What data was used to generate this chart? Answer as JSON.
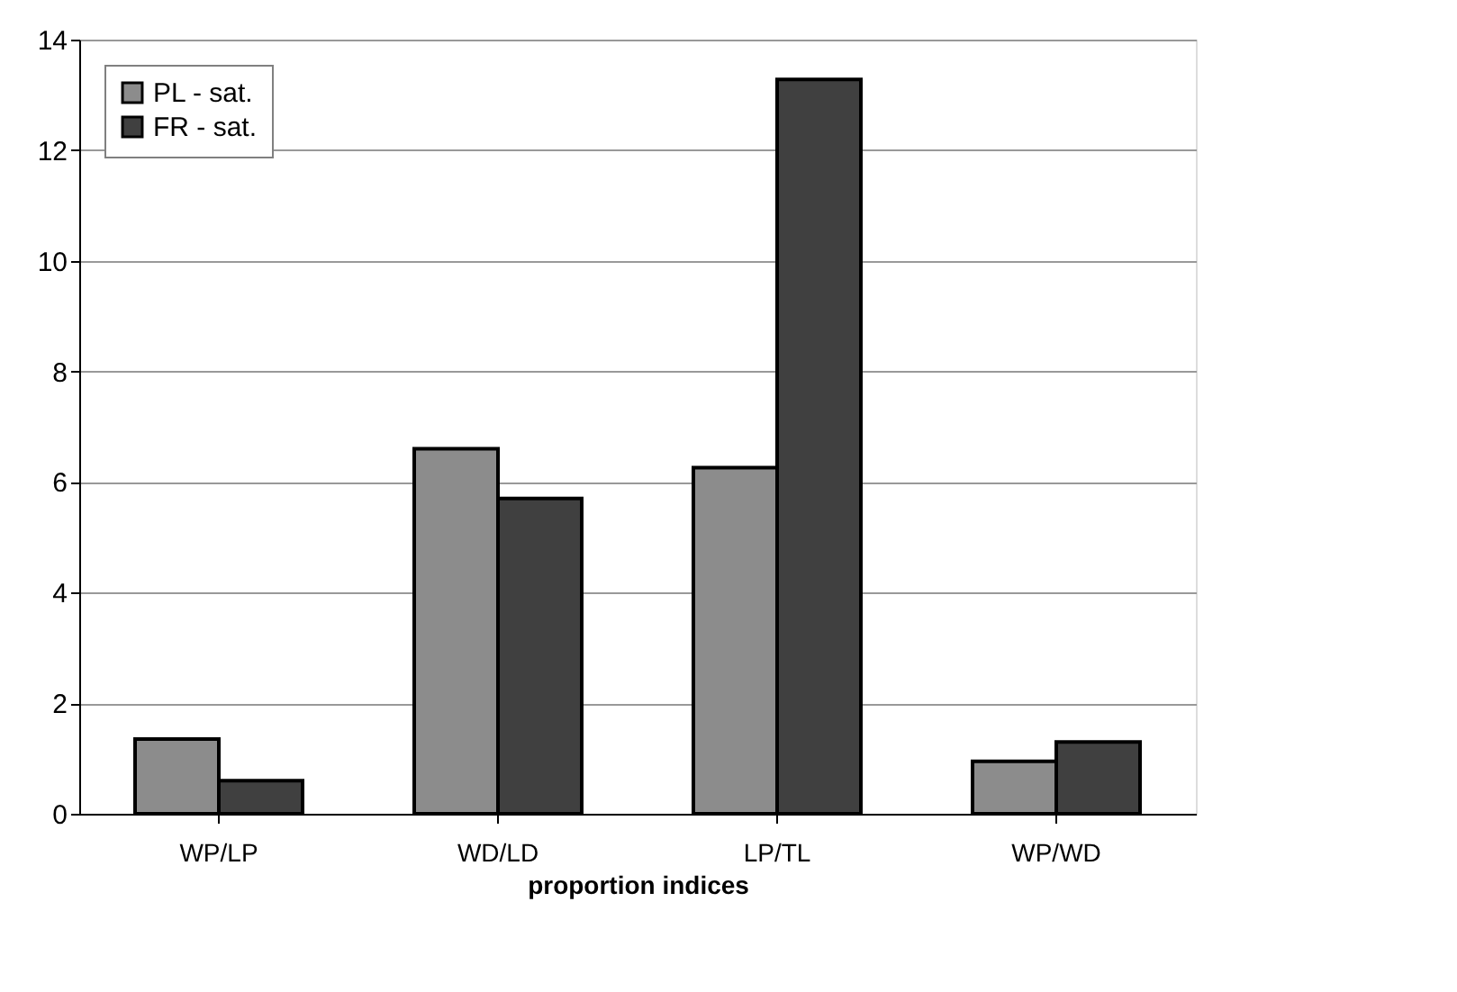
{
  "chart_data": {
    "type": "bar",
    "xlabel": "proportion indices",
    "categories": [
      "WP/LP",
      "WD/LD",
      "LP/TL",
      "WP/WD"
    ],
    "series": [
      {
        "name": "PL - sat.",
        "color": "#8c8c8c",
        "values": [
          1.35,
          6.6,
          6.26,
          0.95
        ]
      },
      {
        "name": "FR - sat.",
        "color": "#404040",
        "values": [
          0.6,
          5.7,
          13.28,
          1.3
        ]
      }
    ],
    "ylim": [
      0,
      14
    ],
    "yticks": [
      0,
      2,
      4,
      6,
      8,
      10,
      12,
      14
    ],
    "grid": "y",
    "legend": "top left"
  }
}
